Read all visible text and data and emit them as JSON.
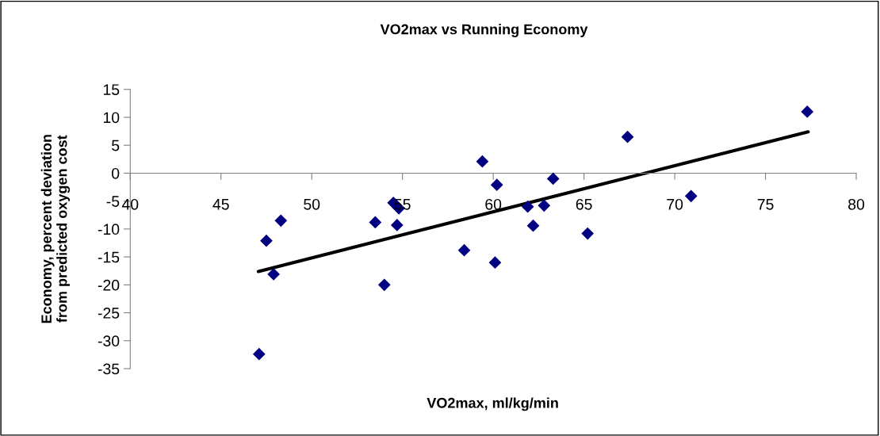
{
  "chart_data": {
    "type": "scatter",
    "title": "VO2max vs Running Economy",
    "xlabel": "VO2max, ml/kg/min",
    "ylabel": "Economy, percent deviation\nfrom predicted oxygen cost",
    "xlim": [
      40,
      80
    ],
    "xticks": [
      40,
      45,
      50,
      55,
      60,
      65,
      70,
      75,
      80
    ],
    "ylim": [
      -35,
      15
    ],
    "yticks": [
      -35,
      -30,
      -25,
      -20,
      -15,
      -10,
      -5,
      0,
      5,
      10,
      15
    ],
    "grid": false,
    "legend": false,
    "marker": "diamond",
    "series": [
      {
        "color": "#000080",
        "x": [
          77.3,
          67.4,
          59.4,
          60.2,
          63.3,
          70.9,
          61.9,
          62.8,
          62.2,
          65.2,
          60.1,
          58.4,
          54.0,
          53.5,
          54.5,
          54.8,
          54.7,
          48.3,
          47.5,
          47.9,
          47.1
        ],
        "values": [
          11.0,
          6.5,
          2.1,
          -2.1,
          -1.0,
          -4.1,
          -6.0,
          -5.8,
          -9.4,
          -10.8,
          -16.0,
          -13.8,
          -20.0,
          -8.8,
          -5.3,
          -6.3,
          -9.3,
          -8.5,
          -12.1,
          -18.1,
          -32.4
        ]
      },
      {
        "type": "line",
        "color": "#000000",
        "marker": "none",
        "line_style": "solid",
        "x": [
          47.06,
          77.35
        ],
        "values": [
          -17.6,
          7.4
        ]
      }
    ]
  }
}
